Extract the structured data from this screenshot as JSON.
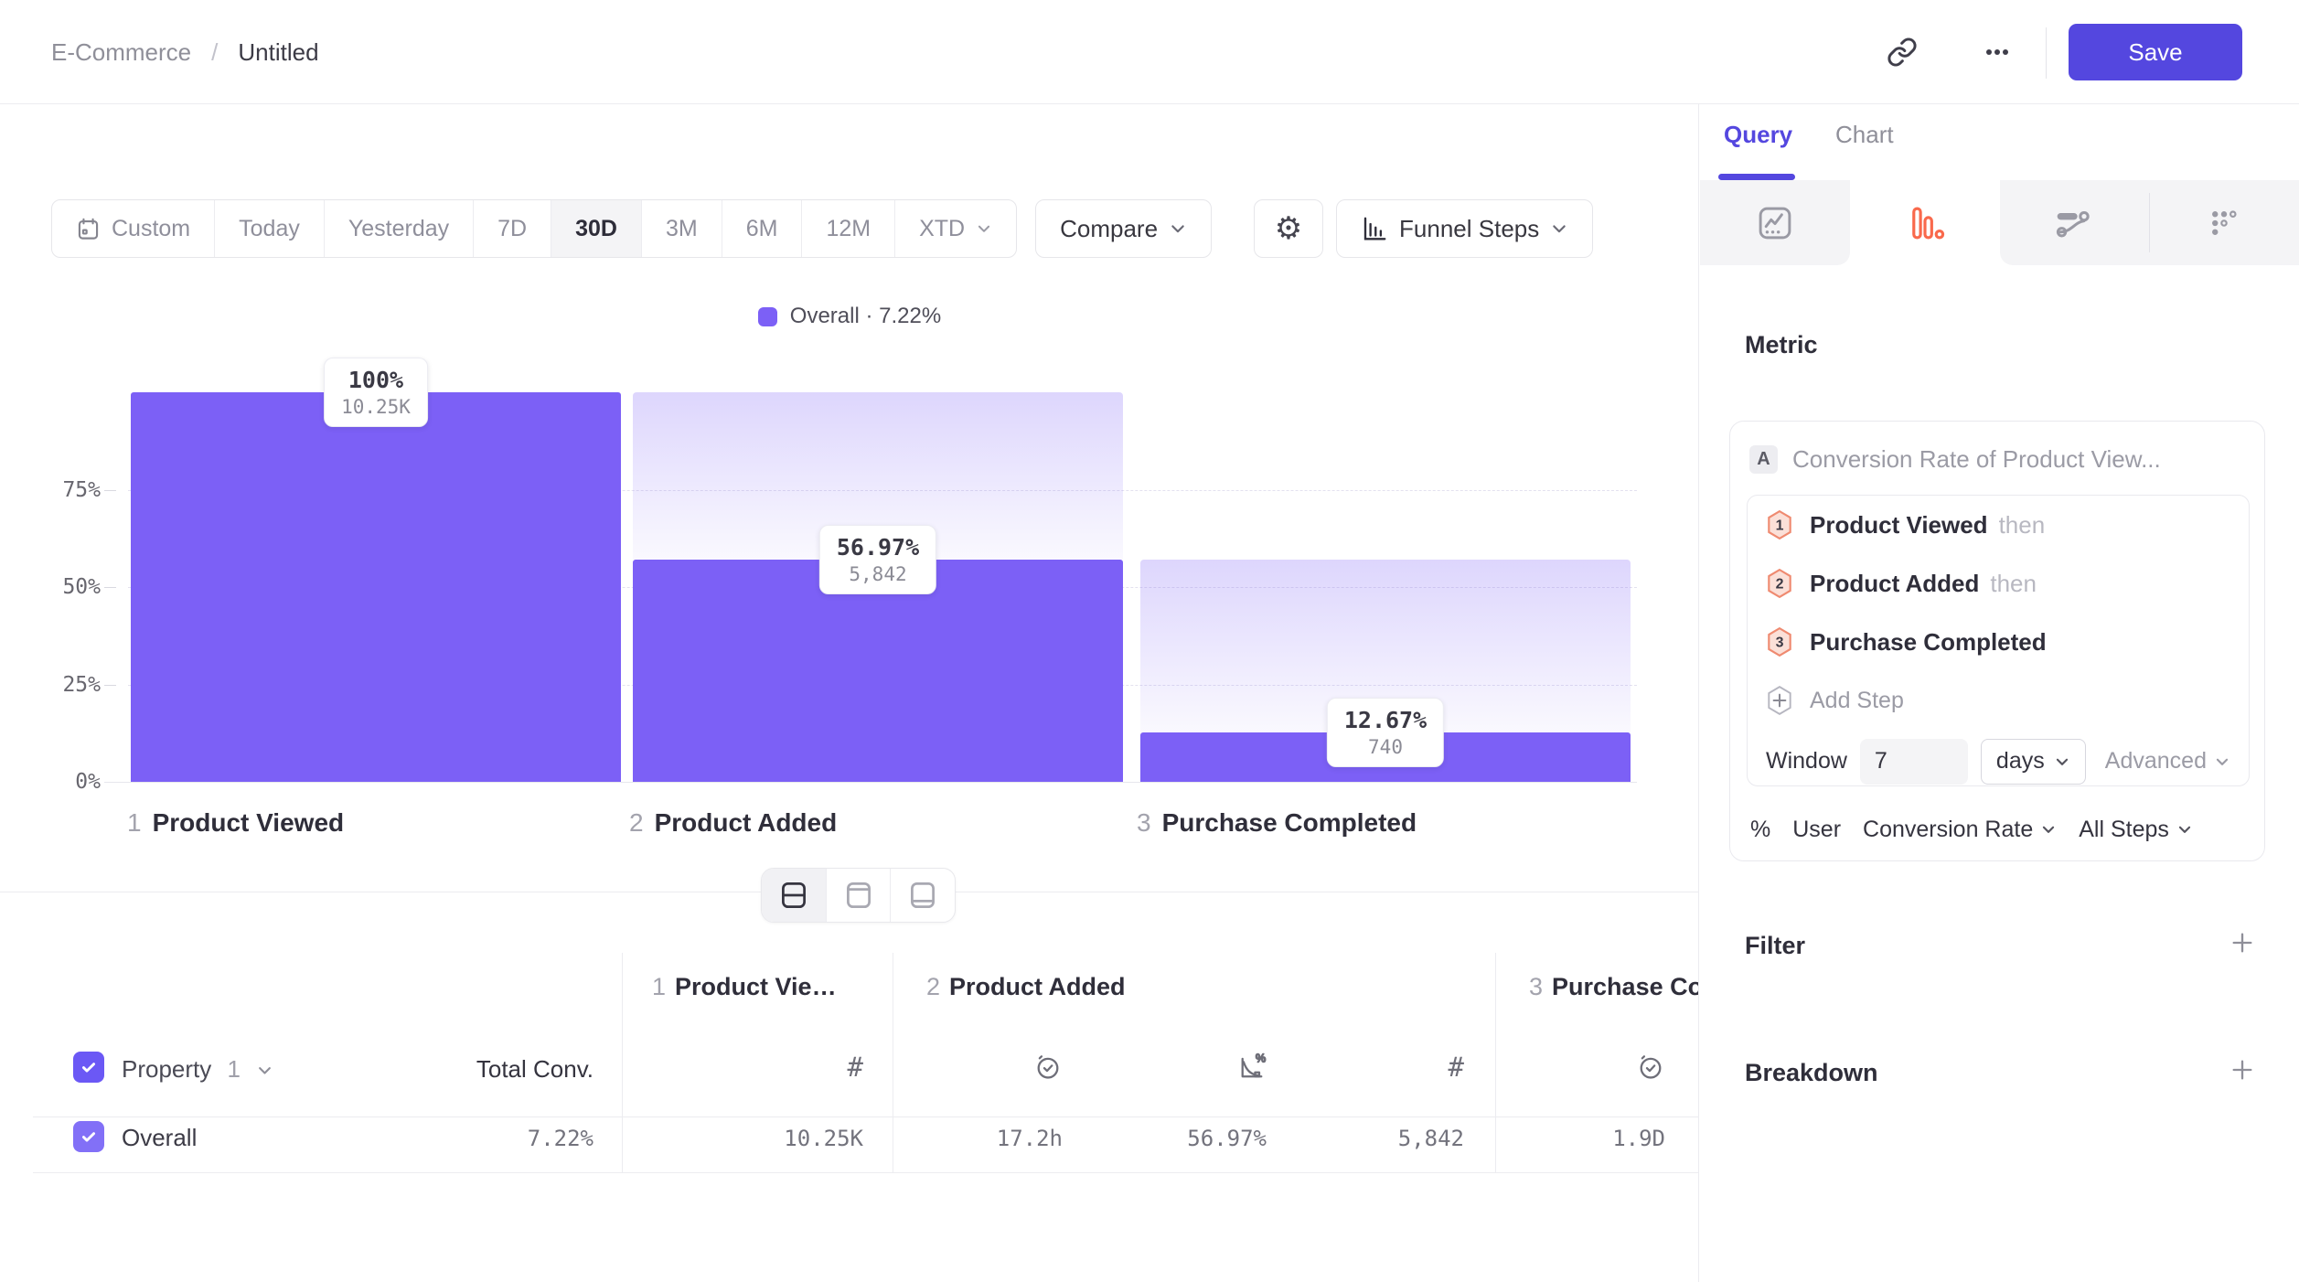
{
  "header": {
    "breadcrumb": {
      "parent": "E-Commerce",
      "separator": "/",
      "current": "Untitled"
    },
    "actions": {
      "link_icon": "link-icon",
      "more_icon": "ellipsis-icon",
      "save_label": "Save"
    }
  },
  "toolbar": {
    "date_ranges": [
      "Custom",
      "Today",
      "Yesterday",
      "7D",
      "30D",
      "3M",
      "6M",
      "12M",
      "XTD"
    ],
    "selected_range": "30D",
    "custom_icon": "calendar-icon",
    "compare_label": "Compare",
    "settings_icon": "gear-icon",
    "view_selector": {
      "icon": "bar-chart-icon",
      "label": "Funnel Steps"
    }
  },
  "legend": {
    "name": "Overall",
    "separator": "·",
    "rate": "7.22%"
  },
  "chart_data": {
    "type": "funnel_bar",
    "title": "",
    "categories": [
      "Product Viewed",
      "Product Added",
      "Purchase Completed"
    ],
    "step_numbers": [
      "1",
      "2",
      "3"
    ],
    "series": [
      {
        "name": "Overall",
        "overall_conversion": "7.22%",
        "values_pct": [
          100,
          56.97,
          12.67
        ],
        "labels_pct": [
          "100%",
          "56.97%",
          "12.67%"
        ],
        "labels_count": [
          "10.25K",
          "5,842",
          "740"
        ]
      }
    ],
    "yticks": [
      {
        "label": "75%",
        "value": 75
      },
      {
        "label": "50%",
        "value": 50
      },
      {
        "label": "25%",
        "value": 25
      },
      {
        "label": "0%",
        "value": 0
      }
    ],
    "ylim": [
      0,
      100
    ],
    "grid": "dashed",
    "bar_color": "#7c60f6"
  },
  "layout_toggles": [
    "split-horizontal",
    "top-panel",
    "bottom-panel"
  ],
  "layout_selected": "split-horizontal",
  "table": {
    "property_label": "Property",
    "property_index": "1",
    "total_conv_header": "Total Conv.",
    "groups": [
      {
        "number": "1",
        "title": "Product Viewed",
        "metric_icons": [
          "hash-icon"
        ]
      },
      {
        "number": "2",
        "title": "Product Added",
        "metric_icons": [
          "clock-check-icon",
          "chart-percent-icon",
          "hash-icon"
        ]
      },
      {
        "number": "3",
        "title": "Purchase Completed",
        "metric_icons": [
          "clock-check-icon"
        ]
      }
    ],
    "row": {
      "name": "Overall",
      "total_conv": "7.22%",
      "values": [
        "10.25K",
        "17.2h",
        "56.97%",
        "5,842",
        "1.9D"
      ]
    }
  },
  "query_panel": {
    "tabs": {
      "query": "Query",
      "chart": "Chart",
      "active": "Query"
    },
    "chart_type_tabs": [
      "insights",
      "funnels",
      "flows",
      "retention"
    ],
    "active_chart_type": "funnels",
    "funnel_accent": "#f9694c",
    "metric": {
      "heading": "Metric",
      "formula_label": "A",
      "formula_title": "Conversion Rate of Product View...",
      "steps": [
        {
          "n": "1",
          "name": "Product Viewed",
          "suffix": "then"
        },
        {
          "n": "2",
          "name": "Product Added",
          "suffix": "then"
        },
        {
          "n": "3",
          "name": "Purchase Completed",
          "suffix": ""
        }
      ],
      "add_step_label": "Add Step",
      "window": {
        "label": "Window",
        "value": "7",
        "unit": "days",
        "advanced_label": "Advanced"
      },
      "measurement": {
        "symbol": "%",
        "entity": "User",
        "metric": "Conversion Rate",
        "scope": "All Steps"
      }
    },
    "filter": {
      "label": "Filter"
    },
    "breakdown": {
      "label": "Breakdown"
    }
  }
}
